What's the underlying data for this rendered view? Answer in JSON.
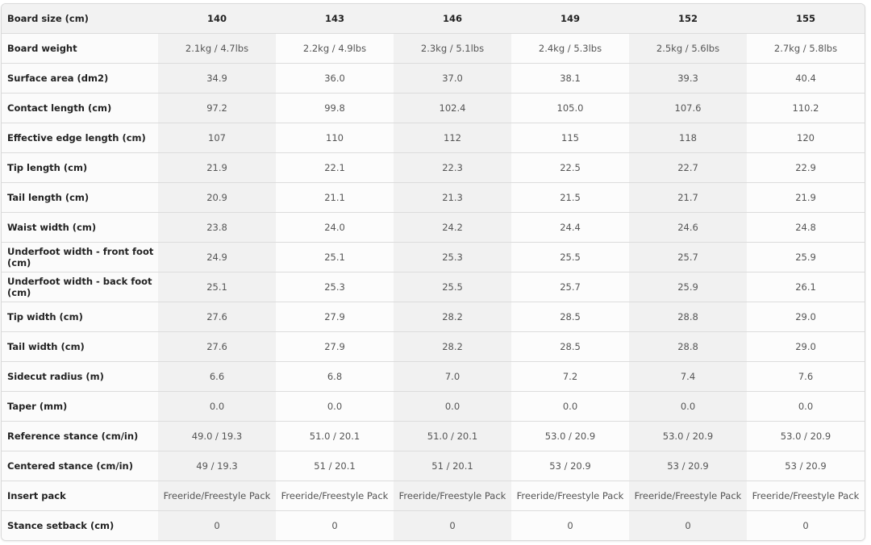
{
  "table": {
    "header_label": "Board size (cm)",
    "sizes": [
      "140",
      "143",
      "146",
      "149",
      "152",
      "155"
    ],
    "rows": [
      {
        "label": "Board weight",
        "values": [
          "2.1kg / 4.7lbs",
          "2.2kg / 4.9lbs",
          "2.3kg / 5.1lbs",
          "2.4kg / 5.3lbs",
          "2.5kg / 5.6lbs",
          "2.7kg / 5.8lbs"
        ]
      },
      {
        "label": "Surface area (dm2)",
        "values": [
          "34.9",
          "36.0",
          "37.0",
          "38.1",
          "39.3",
          "40.4"
        ]
      },
      {
        "label": "Contact length (cm)",
        "values": [
          "97.2",
          "99.8",
          "102.4",
          "105.0",
          "107.6",
          "110.2"
        ]
      },
      {
        "label": "Effective edge length (cm)",
        "values": [
          "107",
          "110",
          "112",
          "115",
          "118",
          "120"
        ]
      },
      {
        "label": "Tip length (cm)",
        "values": [
          "21.9",
          "22.1",
          "22.3",
          "22.5",
          "22.7",
          "22.9"
        ]
      },
      {
        "label": "Tail length (cm)",
        "values": [
          "20.9",
          "21.1",
          "21.3",
          "21.5",
          "21.7",
          "21.9"
        ]
      },
      {
        "label": "Waist width (cm)",
        "values": [
          "23.8",
          "24.0",
          "24.2",
          "24.4",
          "24.6",
          "24.8"
        ]
      },
      {
        "label": "Underfoot width - front foot (cm)",
        "values": [
          "24.9",
          "25.1",
          "25.3",
          "25.5",
          "25.7",
          "25.9"
        ]
      },
      {
        "label": "Underfoot width - back foot (cm)",
        "values": [
          "25.1",
          "25.3",
          "25.5",
          "25.7",
          "25.9",
          "26.1"
        ]
      },
      {
        "label": "Tip width (cm)",
        "values": [
          "27.6",
          "27.9",
          "28.2",
          "28.5",
          "28.8",
          "29.0"
        ]
      },
      {
        "label": "Tail width (cm)",
        "values": [
          "27.6",
          "27.9",
          "28.2",
          "28.5",
          "28.8",
          "29.0"
        ]
      },
      {
        "label": "Sidecut radius (m)",
        "values": [
          "6.6",
          "6.8",
          "7.0",
          "7.2",
          "7.4",
          "7.6"
        ]
      },
      {
        "label": "Taper (mm)",
        "values": [
          "0.0",
          "0.0",
          "0.0",
          "0.0",
          "0.0",
          "0.0"
        ]
      },
      {
        "label": "Reference stance (cm/in)",
        "values": [
          "49.0 / 19.3",
          "51.0 / 20.1",
          "51.0 / 20.1",
          "53.0 / 20.9",
          "53.0 / 20.9",
          "53.0 / 20.9"
        ]
      },
      {
        "label": "Centered stance (cm/in)",
        "values": [
          "49 / 19.3",
          "51 / 20.1",
          "51 / 20.1",
          "53 / 20.9",
          "53 / 20.9",
          "53 / 20.9"
        ]
      },
      {
        "label": "Insert pack",
        "values": [
          "Freeride/Freestyle Pack",
          "Freeride/Freestyle Pack",
          "Freeride/Freestyle Pack",
          "Freeride/Freestyle Pack",
          "Freeride/Freestyle Pack",
          "Freeride/Freestyle Pack"
        ]
      },
      {
        "label": "Stance setback (cm)",
        "values": [
          "0",
          "0",
          "0",
          "0",
          "0",
          "0"
        ]
      }
    ]
  }
}
